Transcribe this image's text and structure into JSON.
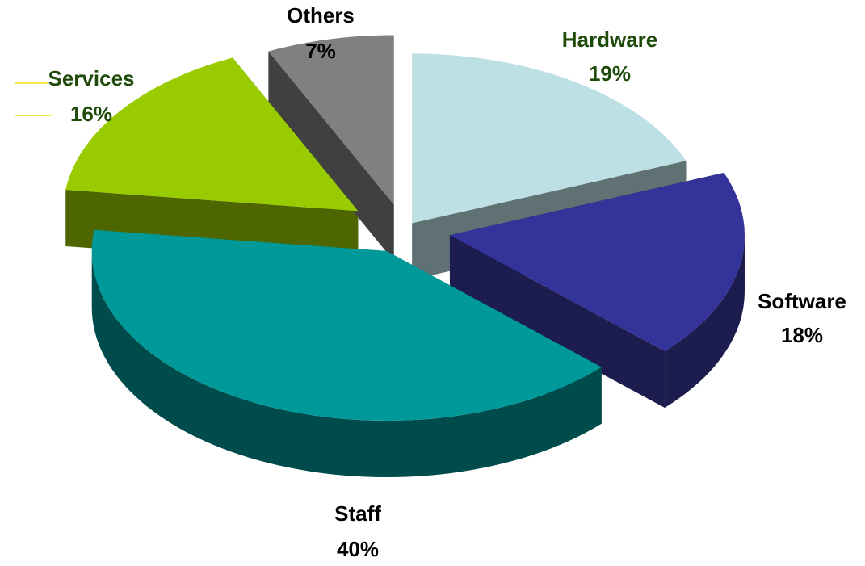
{
  "chart_data": {
    "type": "pie",
    "title": "",
    "three_d": true,
    "exploded": true,
    "slices": [
      {
        "category": "Hardware",
        "value": 19,
        "label": "19%",
        "color": "#bde0e4",
        "side_color": "#5f7173",
        "label_color": "#1e4a0a"
      },
      {
        "category": "Software",
        "value": 18,
        "label": "18%",
        "color": "#333399",
        "side_color": "#1c1c4e",
        "label_color": "#000000"
      },
      {
        "category": "Staff",
        "value": 40,
        "label": "40%",
        "color": "#009999",
        "side_color": "#004c4c",
        "label_color": "#000000"
      },
      {
        "category": "Services",
        "value": 16,
        "label": "16%",
        "color": "#99cc00",
        "side_color": "#4d6600",
        "label_color": "#1e4a0a"
      },
      {
        "category": "Others",
        "value": 7,
        "label": "7%",
        "color": "#808080",
        "side_color": "#404040",
        "label_color": "#000000"
      }
    ],
    "legend": "none"
  }
}
